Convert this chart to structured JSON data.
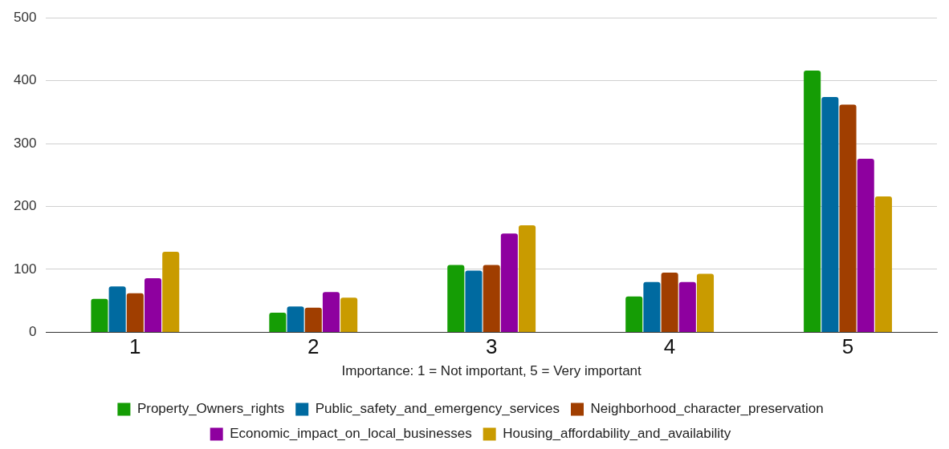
{
  "chart_data": {
    "type": "bar",
    "xlabel": "Importance: 1 = Not important, 5 = Very important",
    "categories": [
      "1",
      "2",
      "3",
      "4",
      "5"
    ],
    "series": [
      {
        "name": "Property_Owners_rights",
        "color": "#159d05",
        "values": [
          53,
          31,
          107,
          57,
          416
        ]
      },
      {
        "name": "Public_safety_and_emergency_services",
        "color": "#006aa0",
        "values": [
          73,
          41,
          98,
          80,
          374
        ]
      },
      {
        "name": "Neighborhood_character_preservation",
        "color": "#a03e00",
        "values": [
          62,
          39,
          107,
          95,
          362
        ]
      },
      {
        "name": "Economic_impact_on_local_businesses",
        "color": "#8e009f",
        "values": [
          86,
          64,
          157,
          80,
          276
        ]
      },
      {
        "name": "Housing_affordability_and_availability",
        "color": "#c99b00",
        "values": [
          128,
          55,
          170,
          93,
          216
        ]
      }
    ],
    "ylim": [
      0,
      500
    ],
    "yticks": [
      0,
      100,
      200,
      300,
      400,
      500
    ],
    "grid": "y",
    "legend": "bottom"
  }
}
